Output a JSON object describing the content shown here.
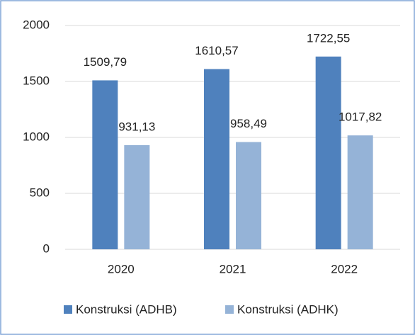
{
  "chart_data": {
    "type": "bar",
    "categories": [
      "2020",
      "2021",
      "2022"
    ],
    "series": [
      {
        "name": "Konstruksi (ADHB)",
        "color": "#4f81bd",
        "values": [
          1509.79,
          1610.57,
          1722.55
        ],
        "value_labels": [
          "1509,79",
          "1610,57",
          "1722,55"
        ]
      },
      {
        "name": "Konstruksi (ADHK)",
        "color": "#95b3d7",
        "values": [
          931.13,
          958.49,
          1017.82
        ],
        "value_labels": [
          "931,13",
          "958,49",
          "1017,82"
        ]
      }
    ],
    "ylim": [
      0,
      2000
    ],
    "yticks": [
      0,
      500,
      1000,
      1500,
      2000
    ],
    "grid": true,
    "legend": "bottom"
  }
}
